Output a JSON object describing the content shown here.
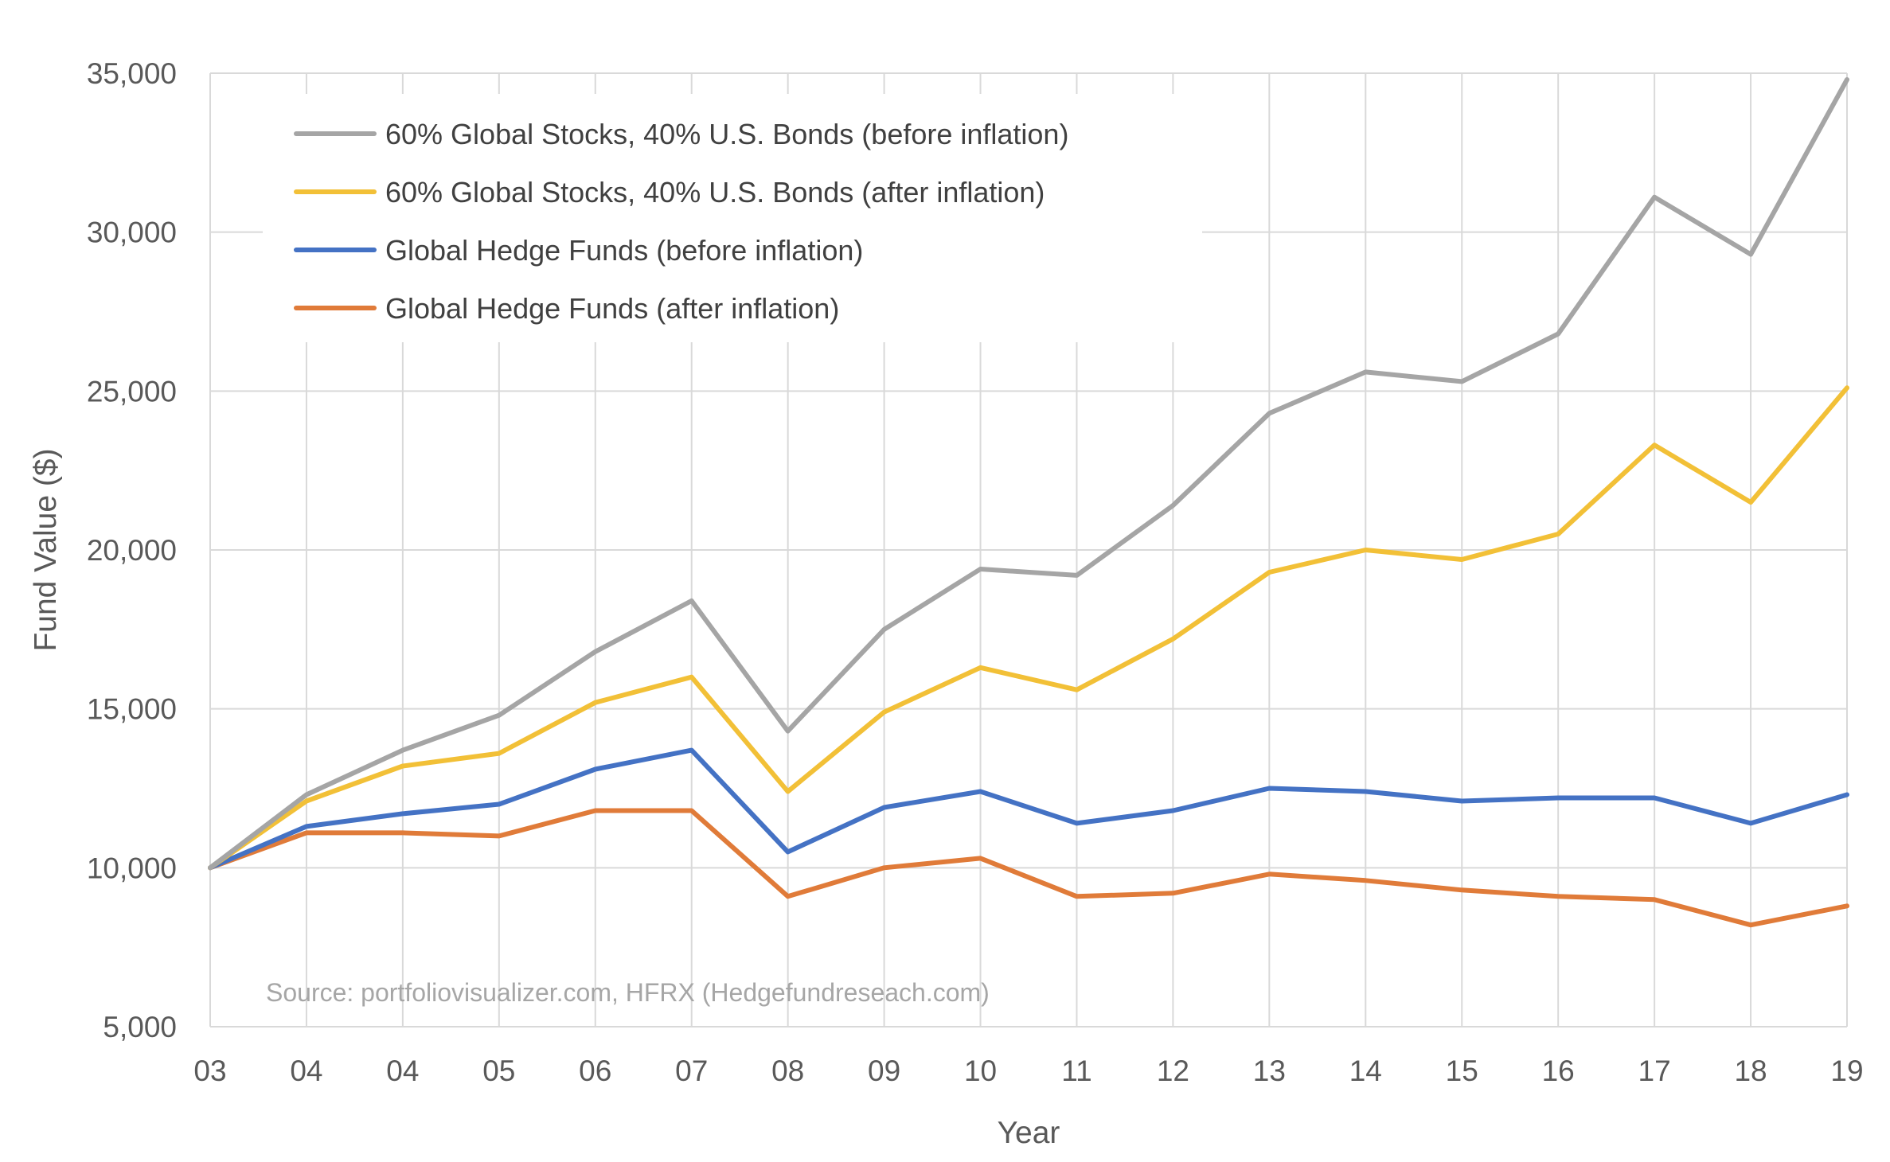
{
  "chart_data": {
    "type": "line",
    "title": "",
    "xlabel": "Year",
    "ylabel": "Fund Value ($)",
    "ylim": [
      5000,
      35000
    ],
    "yticks": [
      5000,
      10000,
      15000,
      20000,
      25000,
      30000,
      35000
    ],
    "ytick_labels": [
      "5,000",
      "10,000",
      "15,000",
      "20,000",
      "25,000",
      "30,000",
      "35,000"
    ],
    "categories": [
      "03",
      "04",
      "04",
      "05",
      "06",
      "07",
      "08",
      "09",
      "10",
      "11",
      "12",
      "13",
      "14",
      "15",
      "16",
      "17",
      "18",
      "19"
    ],
    "grid": true,
    "legend_position": "top-left",
    "annotation": "Source: portfoliovisualizer.com, HFRX (Hedgefundreseach.com)",
    "series": [
      {
        "name": "60% Global Stocks, 40% U.S. Bonds (before inflation)",
        "color": "#a5a5a5",
        "values": [
          10000,
          12300,
          13700,
          14800,
          16800,
          18400,
          14300,
          17500,
          19400,
          19200,
          21400,
          24300,
          25600,
          25300,
          26800,
          31100,
          29300,
          34800
        ]
      },
      {
        "name": "60% Global Stocks, 40% U.S. Bonds (after inflation)",
        "color": "#f2c037",
        "values": [
          10000,
          12100,
          13200,
          13600,
          15200,
          16000,
          12400,
          14900,
          16300,
          15600,
          17200,
          19300,
          20000,
          19700,
          20500,
          23300,
          21500,
          25100
        ]
      },
      {
        "name": "Global Hedge Funds (before inflation)",
        "color": "#4472c4",
        "values": [
          10000,
          11300,
          11700,
          12000,
          13100,
          13700,
          10500,
          11900,
          12400,
          11400,
          11800,
          12500,
          12400,
          12100,
          12200,
          12200,
          11400,
          12300
        ]
      },
      {
        "name": "Global Hedge Funds (after inflation)",
        "color": "#e07b39",
        "values": [
          10000,
          11100,
          11100,
          11000,
          11800,
          11800,
          9100,
          10000,
          10300,
          9100,
          9200,
          9800,
          9600,
          9300,
          9100,
          9000,
          8200,
          8800
        ]
      }
    ]
  }
}
